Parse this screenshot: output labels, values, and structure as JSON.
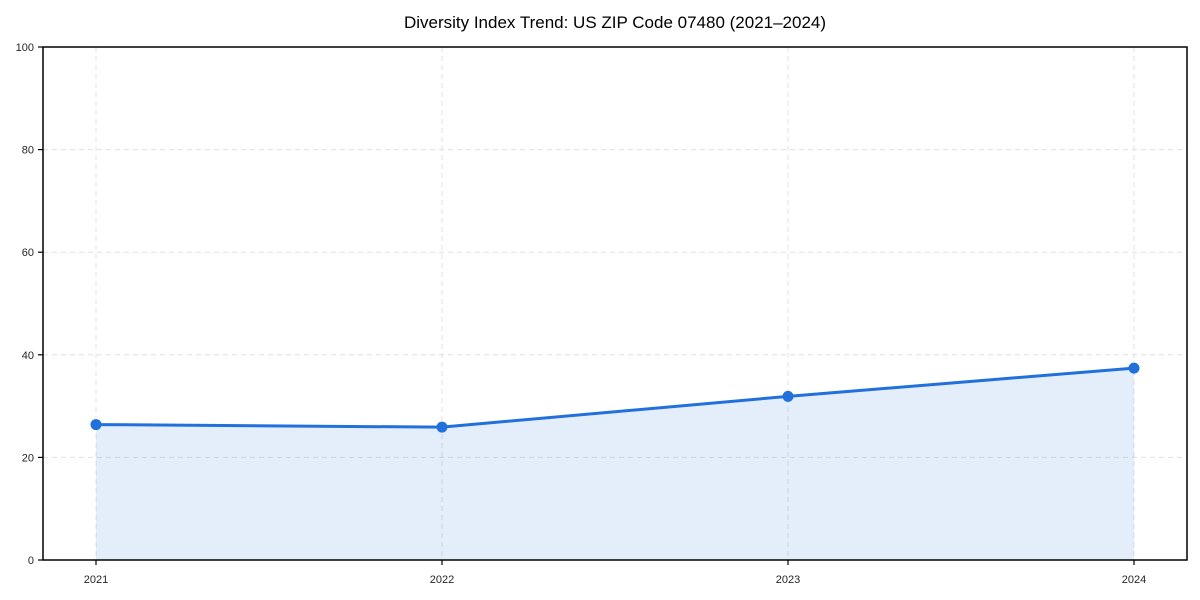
{
  "figure": {
    "background": "#ffffff"
  },
  "chart_data": {
    "type": "area",
    "title": "Diversity Index Trend: US ZIP Code 07480 (2021–2024)",
    "categories": [
      "2021",
      "2022",
      "2023",
      "2024"
    ],
    "series": [
      {
        "name": "Diversity Index",
        "values": [
          26.4,
          25.9,
          31.9,
          37.4
        ]
      }
    ],
    "xlabel": "",
    "ylabel": "",
    "ylim": [
      0,
      100
    ],
    "yticks": [
      0,
      20,
      40,
      60,
      80,
      100
    ],
    "grid": true,
    "grid_style": "dashed",
    "legend": false,
    "area_fill": true,
    "styles": {
      "line_color": "#2170dc",
      "marker_color": "#2170dc",
      "fill_color": "#2170dc",
      "fill_opacity": 0.12,
      "grid_color": "#e0e0e0",
      "axis_color": "#000000",
      "tick_label_color": "#262626",
      "title_color": "#000000"
    }
  }
}
